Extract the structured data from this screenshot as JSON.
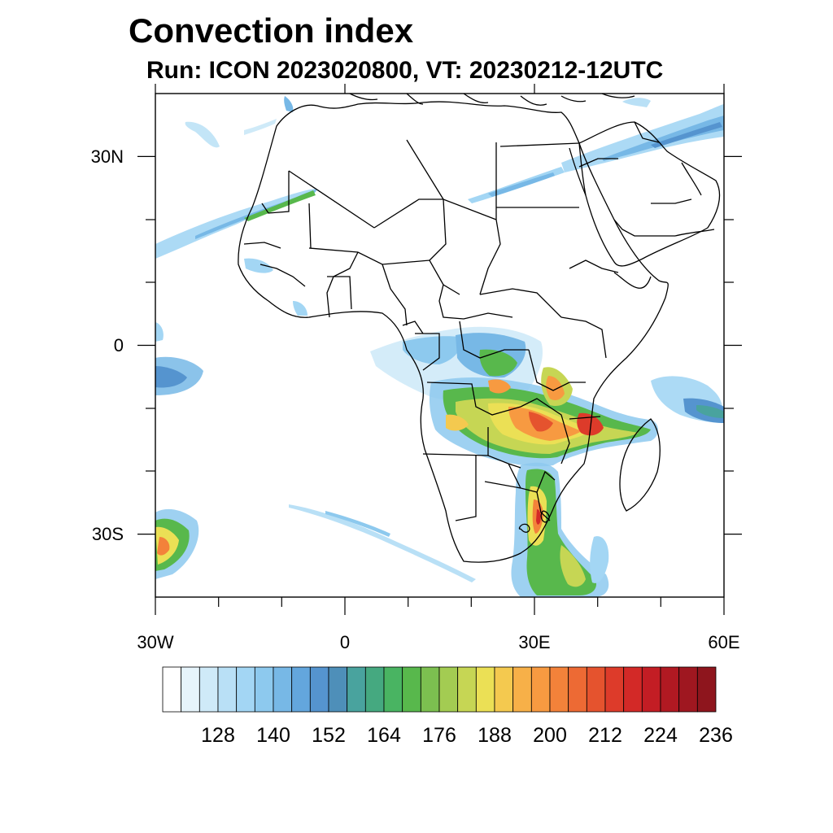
{
  "title": "Convection index",
  "subtitle": "Run: ICON 2023020800,  VT: 20230212-12UTC",
  "map": {
    "lon_range": [
      -30,
      60
    ],
    "lat_range": [
      -40,
      40
    ],
    "projection": "cylindrical equidistant",
    "lon_tick_labels": [
      {
        "lon": -30,
        "label": "30W"
      },
      {
        "lon": 0,
        "label": "0"
      },
      {
        "lon": 30,
        "label": "30E"
      },
      {
        "lon": 60,
        "label": "60E"
      }
    ],
    "lat_tick_labels": [
      {
        "lat": 30,
        "label": "30N"
      },
      {
        "lat": 0,
        "label": "0"
      },
      {
        "lat": -30,
        "label": "30S"
      }
    ]
  },
  "colorbar": {
    "colors": [
      "#ffffff",
      "#e6f4fb",
      "#cfeaf8",
      "#b9e0f6",
      "#a3d6f4",
      "#8dc9ee",
      "#77b8e6",
      "#63a6dd",
      "#5594cf",
      "#4e8fb9",
      "#49a39e",
      "#45a980",
      "#49b462",
      "#58b84c",
      "#7cc050",
      "#a3cc52",
      "#c6d654",
      "#ebe055",
      "#f4c94f",
      "#f7b048",
      "#f79a41",
      "#f3823a",
      "#ed6a34",
      "#e5532e",
      "#dd3b2a",
      "#d32927",
      "#c31d24",
      "#b11922",
      "#9f1720",
      "#8e151d"
    ],
    "labels": [
      "128",
      "140",
      "152",
      "164",
      "176",
      "188",
      "200",
      "212",
      "224",
      "236"
    ]
  }
}
